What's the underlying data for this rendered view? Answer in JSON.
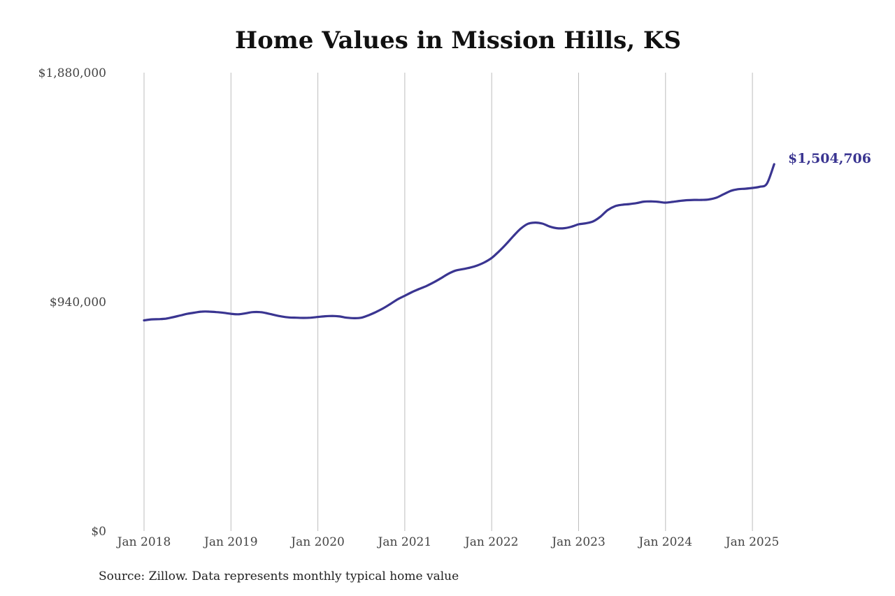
{
  "chart_data": {
    "type": "line",
    "title": "Home Values in Mission Hills, KS",
    "source": "Source: Zillow. Data represents monthly typical home value",
    "xlabel": "",
    "ylabel": "",
    "ylim": [
      0,
      1880000
    ],
    "x_ticks": [
      "Jan 2018",
      "Jan 2019",
      "Jan 2020",
      "Jan 2021",
      "Jan 2022",
      "Jan 2023",
      "Jan 2024",
      "Jan 2025"
    ],
    "y_ticks": [
      "$0",
      "$940,000",
      "$1,880,000"
    ],
    "y_tick_values": [
      0,
      940000,
      1880000
    ],
    "grid": "vertical",
    "end_label": "$1,504,706",
    "line_color": "#3a3591",
    "series": [
      {
        "x": [
          "2018-01",
          "2018-02",
          "2018-03",
          "2018-04",
          "2018-05",
          "2018-06",
          "2018-07",
          "2018-08",
          "2018-09",
          "2018-10",
          "2018-11",
          "2018-12",
          "2019-01",
          "2019-02",
          "2019-03",
          "2019-04",
          "2019-05",
          "2019-06",
          "2019-07",
          "2019-08",
          "2019-09",
          "2019-10",
          "2019-11",
          "2019-12",
          "2020-01",
          "2020-02",
          "2020-03",
          "2020-04",
          "2020-05",
          "2020-06",
          "2020-07",
          "2020-08",
          "2020-09",
          "2020-10",
          "2020-11",
          "2020-12",
          "2021-01",
          "2021-02",
          "2021-03",
          "2021-04",
          "2021-05",
          "2021-06",
          "2021-07",
          "2021-08",
          "2021-09",
          "2021-10",
          "2021-11",
          "2021-12",
          "2022-01",
          "2022-02",
          "2022-03",
          "2022-04",
          "2022-05",
          "2022-06",
          "2022-07",
          "2022-08",
          "2022-09",
          "2022-10",
          "2022-11",
          "2022-12",
          "2023-01",
          "2023-02",
          "2023-03",
          "2023-04",
          "2023-05",
          "2023-06",
          "2023-07",
          "2023-08",
          "2023-09",
          "2023-10",
          "2023-11",
          "2023-12",
          "2024-01",
          "2024-02",
          "2024-03",
          "2024-04",
          "2024-05",
          "2024-06",
          "2024-07",
          "2024-08",
          "2024-09",
          "2024-10",
          "2024-11",
          "2024-12",
          "2025-01",
          "2025-02",
          "2025-03",
          "2025-04"
        ],
        "values": [
          864000,
          868000,
          869000,
          871000,
          877000,
          884000,
          891000,
          896000,
          900000,
          900000,
          898000,
          895000,
          891000,
          889000,
          893000,
          898000,
          898000,
          893000,
          886000,
          880000,
          876000,
          875000,
          874000,
          875000,
          878000,
          881000,
          882000,
          880000,
          875000,
          873000,
          875000,
          885000,
          898000,
          913000,
          931000,
          950000,
          965000,
          980000,
          993000,
          1005000,
          1020000,
          1037000,
          1055000,
          1068000,
          1074000,
          1080000,
          1089000,
          1102000,
          1120000,
          1147000,
          1177000,
          1210000,
          1240000,
          1260000,
          1265000,
          1261000,
          1249000,
          1242000,
          1242000,
          1248000,
          1258000,
          1262000,
          1270000,
          1289000,
          1316000,
          1332000,
          1338000,
          1341000,
          1345000,
          1351000,
          1352000,
          1350000,
          1347000,
          1350000,
          1354000,
          1357000,
          1358000,
          1358000,
          1360000,
          1367000,
          1381000,
          1395000,
          1402000,
          1404000,
          1407000,
          1412000,
          1425000,
          1504706
        ]
      }
    ]
  }
}
